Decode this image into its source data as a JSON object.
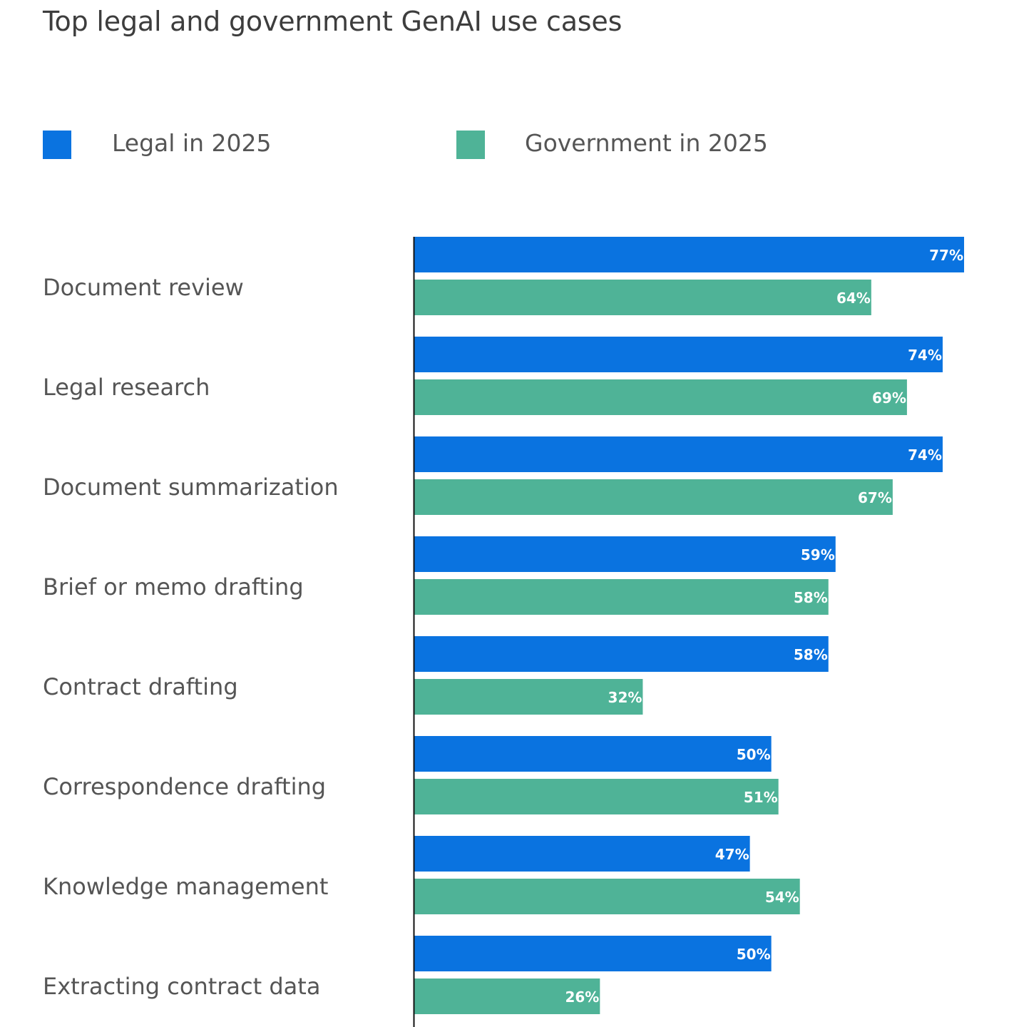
{
  "chart_data": {
    "type": "bar",
    "orientation": "horizontal",
    "title": "Top legal and government GenAI use cases",
    "categories": [
      "Document review",
      "Legal research",
      "Document summarization",
      "Brief or memo drafting",
      "Contract drafting",
      "Correspondence drafting",
      "Knowledge management",
      "Extracting contract data"
    ],
    "series": [
      {
        "name": "Legal in 2025",
        "color": "#0a73e0",
        "values": [
          77,
          74,
          74,
          59,
          58,
          50,
          47,
          50
        ]
      },
      {
        "name": "Government in 2025",
        "color": "#4fb397",
        "values": [
          64,
          69,
          67,
          58,
          32,
          51,
          54,
          26
        ]
      }
    ],
    "value_suffix": "%",
    "xlim": [
      0,
      77
    ],
    "grid": false,
    "legend": "top"
  }
}
